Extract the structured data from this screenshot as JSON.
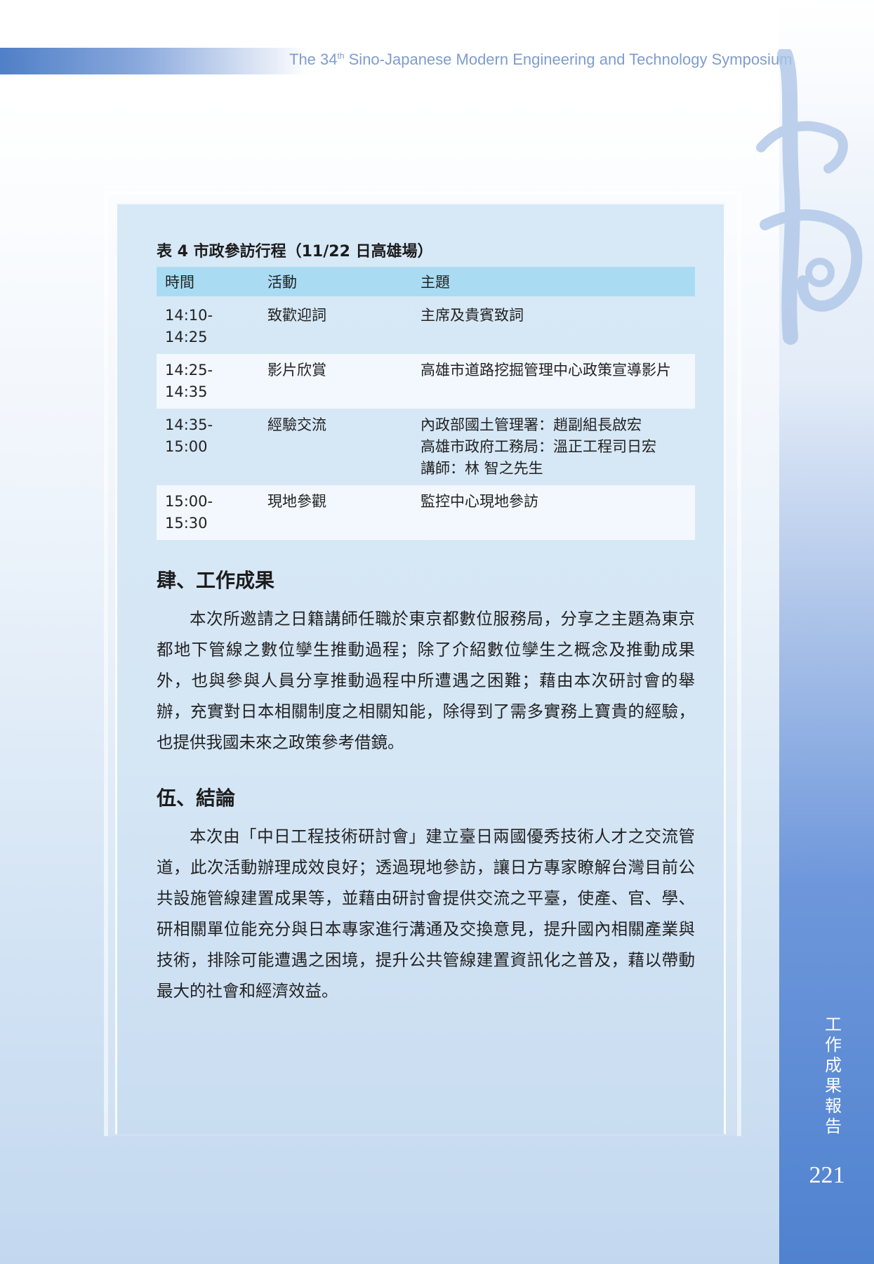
{
  "header": {
    "title_prefix": "The 34",
    "title_sup": "th",
    "title_suffix": " Sino-Japanese Modern Engineering and Technology Symposium"
  },
  "table": {
    "caption": "表 4 市政參訪行程（11/22 日高雄場）",
    "headers": [
      "時間",
      "活動",
      "主題"
    ],
    "rows": [
      {
        "time": "14:10-14:25",
        "activity": "致歡迎詞",
        "topic": [
          "主席及貴賓致詞"
        ]
      },
      {
        "time": "14:25-14:35",
        "activity": "影片欣賞",
        "topic": [
          "高雄市道路挖掘管理中心政策宣導影片"
        ]
      },
      {
        "time": "14:35-15:00",
        "activity": "經驗交流",
        "topic": [
          "內政部國土管理署：趙副組長啟宏",
          "高雄市政府工務局：溫正工程司日宏",
          "講師：林 智之先生"
        ]
      },
      {
        "time": "15:00-15:30",
        "activity": "現地參觀",
        "topic": [
          "監控中心現地參訪"
        ]
      }
    ]
  },
  "sections": [
    {
      "heading": "肆、工作成果",
      "body": "本次所邀請之日籍講師任職於東京都數位服務局，分享之主題為東京都地下管線之數位孿生推動過程；除了介紹數位孿生之概念及推動成果外，也與參與人員分享推動過程中所遭遇之困難；藉由本次研討會的舉辦，充實對日本相關制度之相關知能，除得到了需多實務上寶貴的經驗，也提供我國未來之政策參考借鏡。"
    },
    {
      "heading": "伍、結論",
      "body": "本次由「中日工程技術研討會」建立臺日兩國優秀技術人才之交流管道，此次活動辦理成效良好；透過現地參訪，讓日方專家瞭解台灣目前公共設施管線建置成果等，並藉由研討會提供交流之平臺，使產、官、學、研相關單位能充分與日本專家進行溝通及交換意見，提升國內相關產業與技術，排除可能遭遇之困境，提升公共管線建置資訊化之普及，藉以帶動最大的社會和經濟效益。"
    }
  ],
  "side": {
    "vertical_text": [
      "工",
      "作",
      "成",
      "果",
      "報",
      "告"
    ],
    "page_number": "221"
  },
  "colors": {
    "accent": "#4f82cf",
    "table_header": "#a9dcf3"
  }
}
